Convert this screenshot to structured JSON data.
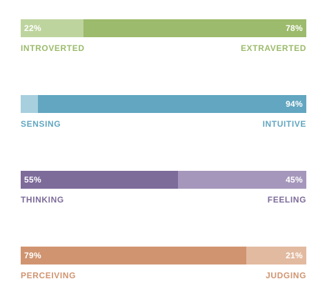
{
  "traits": [
    {
      "left_pct": "22%",
      "right_pct": "78%",
      "left_label": "INTROVERTED",
      "right_label": "EXTRAVERTED",
      "left_fraction": 0.22,
      "left_color": "#bed49e",
      "right_color": "#9cbb6c",
      "label_color": "#9cbb6c"
    },
    {
      "left_pct": "",
      "right_pct": "94%",
      "left_label": "SENSING",
      "right_label": "INTUITIVE",
      "left_fraction": 0.06,
      "left_color": "#a7cfde",
      "right_color": "#62a6c1",
      "label_color": "#62a6c1"
    },
    {
      "left_pct": "55%",
      "right_pct": "45%",
      "left_label": "THINKING",
      "right_label": "FEELING",
      "left_fraction": 0.55,
      "left_color": "#7d6b9a",
      "right_color": "#a597bb",
      "label_color": "#7d6b9a"
    },
    {
      "left_pct": "79%",
      "right_pct": "21%",
      "left_label": "PERCEIVING",
      "right_label": "JUDGING",
      "left_fraction": 0.79,
      "left_color": "#d09470",
      "right_color": "#e2baa0",
      "label_color": "#d09470"
    }
  ]
}
